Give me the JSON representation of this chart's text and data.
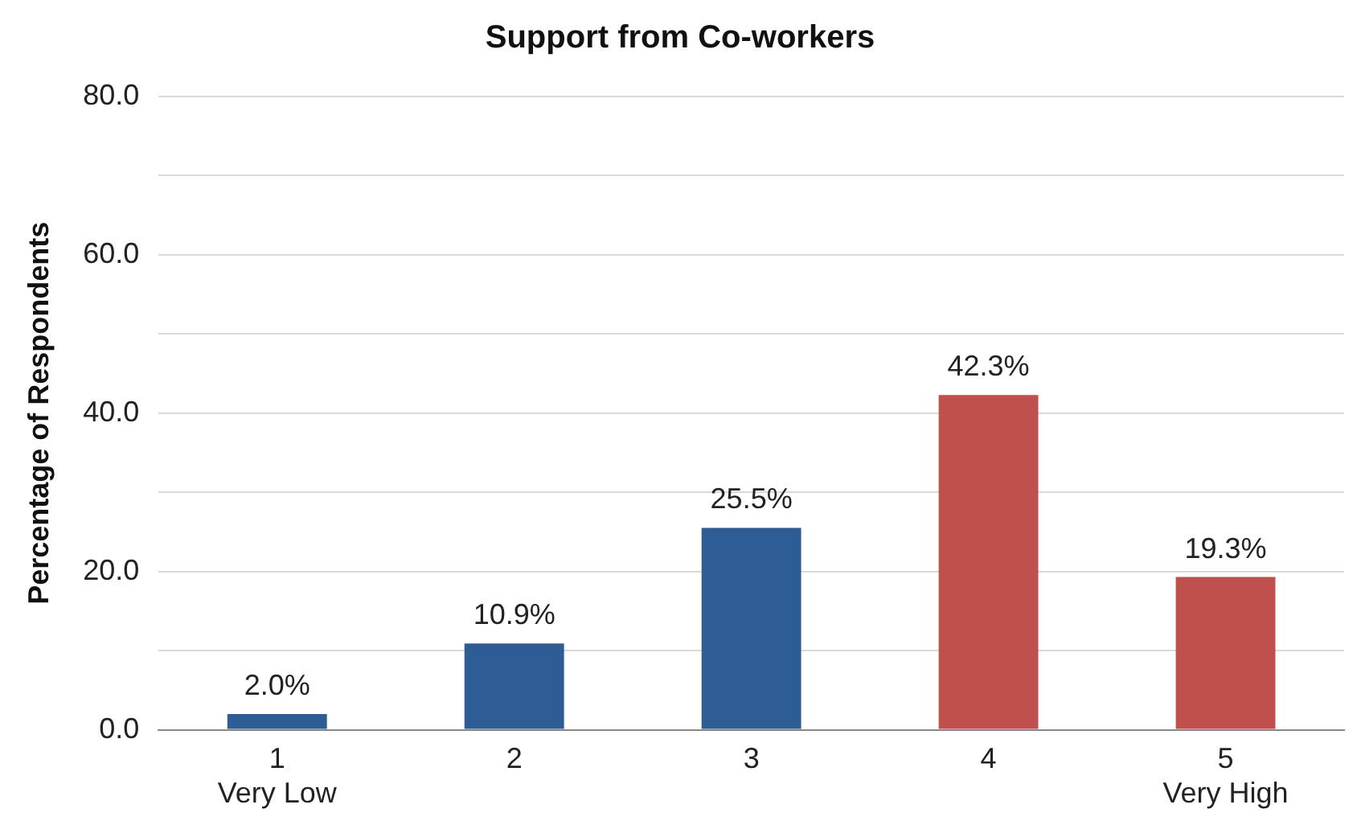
{
  "chart_data": {
    "type": "bar",
    "title": "Support from Co-workers",
    "ylabel": "Percentage of Respondents",
    "categories": [
      "1\nVery Low",
      "2",
      "3",
      "4",
      "5\nVery High"
    ],
    "values": [
      2.0,
      10.9,
      25.5,
      42.3,
      19.3
    ],
    "colors": [
      "#2e5c94",
      "#2e5c94",
      "#2e5c94",
      "#c0504d",
      "#c0504d"
    ],
    "value_labels": [
      "2.0%",
      "10.9%",
      "25.5%",
      "42.3%",
      "19.3%"
    ],
    "ylim": [
      0,
      80
    ],
    "yticks": [
      {
        "value": 0,
        "label": "0.0"
      },
      {
        "value": 10,
        "label": null
      },
      {
        "value": 20,
        "label": "20.0"
      },
      {
        "value": 30,
        "label": null
      },
      {
        "value": 40,
        "label": "40.0"
      },
      {
        "value": 50,
        "label": null
      },
      {
        "value": 60,
        "label": "60.0"
      },
      {
        "value": 70,
        "label": null
      },
      {
        "value": 80,
        "label": "80.0"
      }
    ],
    "grid": "y",
    "legend": false
  }
}
